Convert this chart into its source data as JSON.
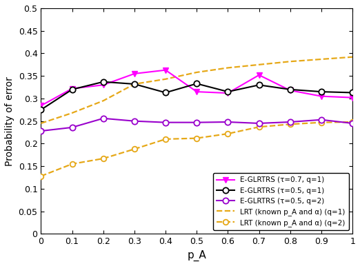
{
  "x": [
    0,
    0.1,
    0.2,
    0.3,
    0.4,
    0.5,
    0.6,
    0.7,
    0.8,
    0.9,
    1.0
  ],
  "eglrtrs_07_q1": [
    0.284,
    0.322,
    0.33,
    0.355,
    0.363,
    0.315,
    0.312,
    0.352,
    0.318,
    0.305,
    0.302
  ],
  "eglrtrs_05_q1": [
    0.275,
    0.32,
    0.337,
    0.332,
    0.313,
    0.333,
    0.315,
    0.33,
    0.32,
    0.315,
    0.313
  ],
  "eglrtrs_05_q2": [
    0.228,
    0.236,
    0.256,
    0.25,
    0.247,
    0.247,
    0.248,
    0.245,
    0.248,
    0.253,
    0.245
  ],
  "lrt_q1": [
    0.245,
    0.268,
    0.295,
    0.332,
    0.343,
    0.358,
    0.368,
    0.375,
    0.382,
    0.387,
    0.392
  ],
  "lrt_q2": [
    0.128,
    0.155,
    0.167,
    0.188,
    0.21,
    0.212,
    0.222,
    0.237,
    0.243,
    0.247,
    0.248
  ],
  "color_magenta": "#FF00FF",
  "color_black": "#000000",
  "color_purple": "#9900CC",
  "color_orange": "#E6A817",
  "ylim": [
    0,
    0.5
  ],
  "xlim": [
    0,
    1
  ],
  "xlabel": "p_A",
  "ylabel": "Probability of error",
  "xticks": [
    0,
    0.1,
    0.2,
    0.3,
    0.4,
    0.5,
    0.6,
    0.7,
    0.8,
    0.9,
    1.0
  ],
  "yticks": [
    0,
    0.05,
    0.1,
    0.15,
    0.2,
    0.25,
    0.3,
    0.35,
    0.4,
    0.45,
    0.5
  ],
  "legend_labels": [
    "E-GLRTRS (τ=0.7, q=1)",
    "E-GLRTRS (τ=0.5, q=1)",
    "E-GLRTRS (τ=0.5, q=2)",
    "LRT (known p_A and α) (q=1)",
    "LRT (known p_A and α) (q=2)"
  ]
}
